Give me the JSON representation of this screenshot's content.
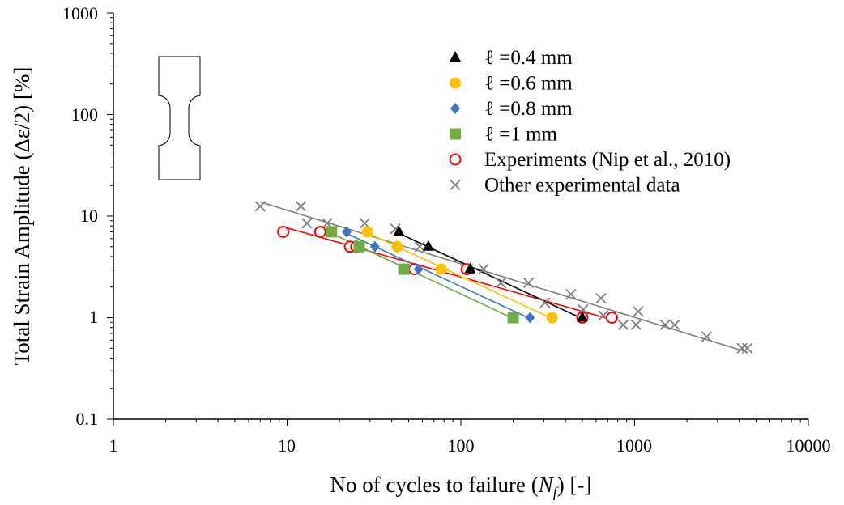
{
  "chart_data": {
    "type": "scatter",
    "x_scale": "log",
    "y_scale": "log",
    "xlim": [
      1,
      10000
    ],
    "ylim": [
      0.1,
      1000
    ],
    "x_ticks": [
      "1",
      "10",
      "100",
      "1000",
      "10000"
    ],
    "y_ticks": [
      "0.1",
      "1",
      "10",
      "100",
      "1000"
    ],
    "xlabel": "No of cycles to failure (Nₙ) [-]",
    "xlabel_parts": {
      "before": "No of cycles to failure (",
      "italic": "N",
      "sub": "f",
      "after": ") [-]"
    },
    "ylabel": "Total Strain Amplitude  (Δε/2) [%]",
    "grid": false,
    "legend_position": "top-right",
    "series": [
      {
        "name": "ℓ =0.4 mm",
        "marker": "triangle",
        "color": "#000000",
        "fit_line": true,
        "points": [
          [
            44,
            7
          ],
          [
            65,
            5
          ],
          [
            113,
            3
          ],
          [
            500,
            1
          ]
        ]
      },
      {
        "name": "ℓ =0.6 mm",
        "marker": "circle-filled",
        "color": "#FFC000",
        "fit_line": true,
        "points": [
          [
            29,
            7
          ],
          [
            43,
            5
          ],
          [
            77,
            3
          ],
          [
            335,
            1
          ]
        ]
      },
      {
        "name": "ℓ =0.8 mm",
        "marker": "diamond",
        "color": "#4472C4",
        "fit_line": true,
        "points": [
          [
            22,
            7
          ],
          [
            32,
            5
          ],
          [
            57,
            3
          ],
          [
            250,
            1
          ]
        ]
      },
      {
        "name": "ℓ =1 mm",
        "marker": "square",
        "color": "#70AD47",
        "fit_line": true,
        "points": [
          [
            18,
            7
          ],
          [
            26,
            5
          ],
          [
            47,
            3
          ],
          [
            200,
            1
          ]
        ]
      },
      {
        "name": "Experiments (Nip et al., 2010)",
        "marker": "circle-open",
        "color": "#FF0000",
        "fit_line": true,
        "points": [
          [
            9.5,
            7
          ],
          [
            15.5,
            7
          ],
          [
            23,
            5
          ],
          [
            25,
            5
          ],
          [
            54,
            3
          ],
          [
            108,
            3
          ],
          [
            500,
            1
          ],
          [
            740,
            1
          ]
        ]
      },
      {
        "name": "Other experimental data",
        "marker": "x",
        "color": "#808080",
        "fit_line": true,
        "points": [
          [
            7,
            12.5
          ],
          [
            12,
            12.5
          ],
          [
            13,
            8.5
          ],
          [
            17,
            8.5
          ],
          [
            28,
            8.5
          ],
          [
            18,
            7
          ],
          [
            42,
            7.5
          ],
          [
            58,
            5
          ],
          [
            135,
            3
          ],
          [
            110,
            3
          ],
          [
            170,
            2.2
          ],
          [
            245,
            2.2
          ],
          [
            305,
            1.4
          ],
          [
            430,
            1.7
          ],
          [
            505,
            1.2
          ],
          [
            640,
            1.55
          ],
          [
            660,
            1.05
          ],
          [
            1050,
            1.15
          ],
          [
            860,
            0.85
          ],
          [
            1020,
            0.85
          ],
          [
            1500,
            0.85
          ],
          [
            1700,
            0.85
          ],
          [
            2600,
            0.65
          ],
          [
            4150,
            0.5
          ],
          [
            4450,
            0.5
          ]
        ]
      }
    ]
  }
}
